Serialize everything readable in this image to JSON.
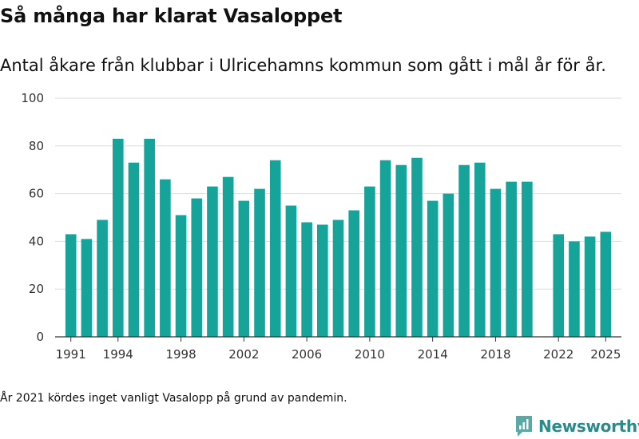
{
  "title": "Så många har klarat Vasaloppet",
  "subtitle": "Antal åkare från klubbar i Ulricehamns kommun som gått i mål år för år.",
  "note": "År 2021 kördes inget vanligt Vasalopp på grund av pandemin.",
  "brand": {
    "name": "Newsworthy",
    "icon": "newsworthy-logo-icon"
  },
  "colors": {
    "bar": "#16a39a",
    "grid": "#dddddd",
    "axis": "#333333",
    "brand": "#2b8a8a"
  },
  "chart_data": {
    "type": "bar",
    "title": "Så många har klarat Vasaloppet",
    "xlabel": "",
    "ylabel": "",
    "ylim": [
      0,
      100
    ],
    "yticks": [
      0,
      20,
      40,
      60,
      80,
      100
    ],
    "xticks": [
      1991,
      1994,
      1998,
      2002,
      2006,
      2010,
      2014,
      2018,
      2022,
      2025
    ],
    "grid": true,
    "x": [
      1991,
      1992,
      1993,
      1994,
      1995,
      1996,
      1997,
      1998,
      1999,
      2000,
      2001,
      2002,
      2003,
      2004,
      2005,
      2006,
      2007,
      2008,
      2009,
      2010,
      2011,
      2012,
      2013,
      2014,
      2015,
      2016,
      2017,
      2018,
      2019,
      2020,
      2022,
      2023,
      2024,
      2025
    ],
    "values": [
      43,
      41,
      49,
      83,
      73,
      83,
      66,
      51,
      58,
      63,
      67,
      57,
      62,
      74,
      55,
      48,
      47,
      49,
      53,
      63,
      74,
      72,
      75,
      57,
      60,
      72,
      73,
      62,
      65,
      65,
      43,
      40,
      42,
      44
    ]
  }
}
